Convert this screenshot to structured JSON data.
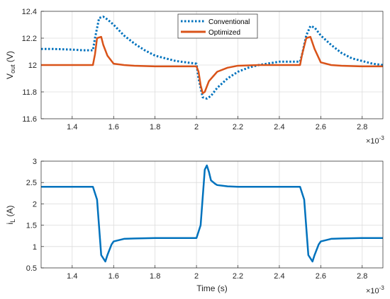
{
  "chart_data": [
    {
      "type": "line",
      "ylabel_main": "V",
      "ylabel_sub": "out",
      "ylabel_unit": " (V)",
      "xlim": [
        0.00125,
        0.0029
      ],
      "ylim": [
        11.6,
        12.4
      ],
      "xticks": [
        0.0014,
        0.0016,
        0.0018,
        0.002,
        0.0022,
        0.0024,
        0.0026,
        0.0028
      ],
      "xtick_labels": [
        "1.4",
        "1.6",
        "1.8",
        "2",
        "2.2",
        "2.4",
        "2.6",
        "2.8"
      ],
      "yticks": [
        11.6,
        11.8,
        12.0,
        12.2,
        12.4
      ],
      "ytick_labels": [
        "11.6",
        "11.8",
        "12",
        "12.2",
        "12.4"
      ],
      "x_multiplier": {
        "base": "×10",
        "exp": "-3"
      },
      "grid": true,
      "legend_position": "top-center",
      "series": [
        {
          "name": "Conventional",
          "color": "#0072BD",
          "style": "dotted",
          "x": [
            0.00125,
            0.0013,
            0.0014,
            0.00145,
            0.0015,
            0.00151,
            0.00153,
            0.00155,
            0.00157,
            0.0016,
            0.00165,
            0.0017,
            0.00175,
            0.0018,
            0.00185,
            0.0019,
            0.00195,
            0.002,
            0.00201,
            0.00203,
            0.00205,
            0.00207,
            0.0021,
            0.00215,
            0.0022,
            0.00225,
            0.0023,
            0.0024,
            0.00245,
            0.0025,
            0.00251,
            0.00253,
            0.00255,
            0.00257,
            0.0026,
            0.00265,
            0.0027,
            0.00275,
            0.0028,
            0.00285,
            0.0029
          ],
          "y": [
            12.12,
            12.12,
            12.115,
            12.11,
            12.11,
            12.2,
            12.35,
            12.36,
            12.34,
            12.3,
            12.22,
            12.16,
            12.11,
            12.07,
            12.05,
            12.03,
            12.02,
            12.01,
            11.9,
            11.76,
            11.75,
            11.77,
            11.83,
            11.9,
            11.95,
            11.98,
            12.0,
            12.025,
            12.025,
            12.025,
            12.08,
            12.22,
            12.29,
            12.28,
            12.22,
            12.15,
            12.09,
            12.05,
            12.03,
            12.01,
            12.0
          ]
        },
        {
          "name": "Optimized",
          "color": "#D95319",
          "style": "solid",
          "x": [
            0.00125,
            0.0013,
            0.0014,
            0.0015,
            0.00151,
            0.00152,
            0.00154,
            0.00155,
            0.00157,
            0.0016,
            0.00165,
            0.0017,
            0.0018,
            0.0019,
            0.002,
            0.00201,
            0.00202,
            0.00203,
            0.00204,
            0.00206,
            0.0021,
            0.00215,
            0.0022,
            0.0023,
            0.0024,
            0.0025,
            0.00251,
            0.00253,
            0.00255,
            0.00257,
            0.0026,
            0.00265,
            0.0027,
            0.0028,
            0.0029
          ],
          "y": [
            12.0,
            12.0,
            12.0,
            12.0,
            12.08,
            12.2,
            12.21,
            12.15,
            12.07,
            12.01,
            12.0,
            11.995,
            11.99,
            11.99,
            11.99,
            11.95,
            11.85,
            11.79,
            11.8,
            11.88,
            11.95,
            11.98,
            11.995,
            12.0,
            12.0,
            12.0,
            12.08,
            12.2,
            12.21,
            12.12,
            12.02,
            12.0,
            11.995,
            11.99,
            11.99
          ]
        }
      ]
    },
    {
      "type": "line",
      "ylabel_main": "i",
      "ylabel_sub": "L",
      "ylabel_unit": " (A)",
      "xlabel": "Time (s)",
      "xlim": [
        0.00125,
        0.0029
      ],
      "ylim": [
        0.5,
        3.0
      ],
      "xticks": [
        0.0014,
        0.0016,
        0.0018,
        0.002,
        0.0022,
        0.0024,
        0.0026,
        0.0028
      ],
      "xtick_labels": [
        "1.4",
        "1.6",
        "1.8",
        "2",
        "2.2",
        "2.4",
        "2.6",
        "2.8"
      ],
      "yticks": [
        0.5,
        1.0,
        1.5,
        2.0,
        2.5,
        3.0
      ],
      "ytick_labels": [
        "0.5",
        "1",
        "1.5",
        "2",
        "2.5",
        "3"
      ],
      "x_multiplier": {
        "base": "×10",
        "exp": "-3"
      },
      "grid": true,
      "series": [
        {
          "color": "#0072BD",
          "style": "solid",
          "x": [
            0.00125,
            0.0013,
            0.0014,
            0.0015,
            0.00152,
            0.00154,
            0.00156,
            0.00157,
            0.00159,
            0.0016,
            0.00165,
            0.0017,
            0.0018,
            0.0019,
            0.002,
            0.00202,
            0.00204,
            0.00205,
            0.00206,
            0.00207,
            0.00209,
            0.0021,
            0.00215,
            0.0022,
            0.0023,
            0.0024,
            0.0025,
            0.00252,
            0.00254,
            0.00256,
            0.00257,
            0.00259,
            0.0026,
            0.00265,
            0.0027,
            0.0028,
            0.0029
          ],
          "y": [
            2.4,
            2.4,
            2.4,
            2.4,
            2.1,
            0.8,
            0.65,
            0.8,
            1.05,
            1.12,
            1.18,
            1.19,
            1.2,
            1.2,
            1.2,
            1.5,
            2.8,
            2.9,
            2.75,
            2.55,
            2.47,
            2.44,
            2.41,
            2.4,
            2.4,
            2.4,
            2.4,
            2.1,
            0.8,
            0.65,
            0.8,
            1.05,
            1.12,
            1.18,
            1.19,
            1.2,
            1.2
          ]
        }
      ]
    }
  ]
}
